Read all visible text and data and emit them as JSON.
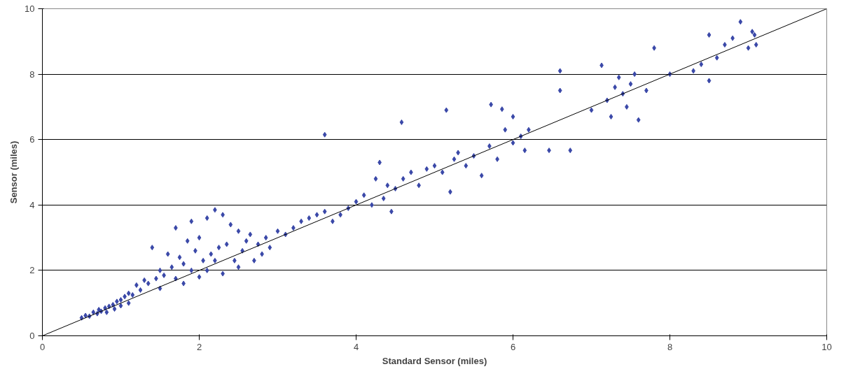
{
  "chart_data": {
    "type": "scatter",
    "xlabel": "Standard Sensor (miles)",
    "ylabel": "Sensor (miles)",
    "xlim": [
      0,
      10
    ],
    "ylim": [
      0,
      10
    ],
    "xticks": [
      0,
      2,
      4,
      6,
      8,
      10
    ],
    "yticks": [
      0,
      2,
      4,
      6,
      8,
      10
    ],
    "grid": "y",
    "series": [
      {
        "color": "#3a48a8",
        "marker": "diamond",
        "x": [
          0.5,
          0.55,
          0.6,
          0.65,
          0.7,
          0.72,
          0.75,
          0.8,
          0.82,
          0.85,
          0.9,
          0.92,
          0.95,
          1.0,
          1.0,
          1.05,
          1.1,
          1.1,
          1.15,
          1.2,
          1.25,
          1.3,
          1.35,
          1.4,
          1.45,
          1.5,
          1.5,
          1.55,
          1.6,
          1.65,
          1.7,
          1.7,
          1.75,
          1.8,
          1.8,
          1.85,
          1.9,
          1.9,
          1.95,
          2.0,
          2.0,
          2.05,
          2.1,
          2.1,
          2.15,
          2.2,
          2.2,
          2.25,
          2.3,
          2.3,
          2.35,
          2.4,
          2.45,
          2.5,
          2.5,
          2.55,
          2.6,
          2.65,
          2.7,
          2.75,
          2.8,
          2.85,
          2.9,
          3.0,
          3.1,
          3.2,
          3.3,
          3.4,
          3.5,
          3.6,
          3.6,
          3.7,
          3.8,
          3.9,
          4.0,
          4.1,
          4.2,
          4.25,
          4.3,
          4.35,
          4.4,
          4.45,
          4.5,
          4.58,
          4.6,
          4.7,
          4.8,
          4.9,
          5.0,
          5.1,
          5.15,
          5.2,
          5.25,
          5.3,
          5.4,
          5.5,
          5.6,
          5.7,
          5.72,
          5.8,
          5.86,
          5.9,
          6.0,
          6.0,
          6.1,
          6.15,
          6.2,
          6.46,
          6.6,
          6.6,
          6.73,
          7.0,
          7.13,
          7.2,
          7.25,
          7.3,
          7.35,
          7.4,
          7.45,
          7.5,
          7.55,
          7.6,
          7.7,
          7.8,
          8.0,
          8.3,
          8.4,
          8.5,
          8.5,
          8.6,
          8.7,
          8.8,
          8.9,
          9.0,
          9.05,
          9.1,
          9.08
        ],
        "values": [
          0.55,
          0.62,
          0.6,
          0.72,
          0.68,
          0.8,
          0.75,
          0.85,
          0.72,
          0.9,
          0.95,
          0.82,
          1.05,
          1.1,
          0.92,
          1.2,
          1.3,
          1.0,
          1.25,
          1.55,
          1.4,
          1.7,
          1.6,
          2.7,
          1.75,
          2.0,
          1.45,
          1.85,
          2.5,
          2.1,
          3.3,
          1.75,
          2.4,
          2.2,
          1.6,
          2.9,
          3.5,
          2.0,
          2.6,
          3.0,
          1.8,
          2.3,
          3.6,
          2.0,
          2.5,
          3.85,
          2.3,
          2.7,
          3.7,
          1.9,
          2.8,
          3.4,
          2.3,
          3.2,
          2.1,
          2.6,
          2.9,
          3.1,
          2.3,
          2.8,
          2.5,
          3.0,
          2.7,
          3.2,
          3.1,
          3.3,
          3.5,
          3.6,
          3.7,
          3.8,
          6.15,
          3.5,
          3.7,
          3.9,
          4.1,
          4.3,
          4.0,
          4.8,
          5.3,
          4.2,
          4.6,
          3.8,
          4.5,
          6.53,
          4.8,
          5.0,
          4.6,
          5.1,
          5.2,
          5.0,
          6.9,
          4.4,
          5.4,
          5.6,
          5.2,
          5.5,
          4.9,
          5.8,
          7.07,
          5.4,
          6.93,
          6.3,
          6.7,
          5.9,
          6.1,
          5.67,
          6.3,
          5.67,
          7.5,
          8.1,
          5.67,
          6.9,
          8.27,
          7.2,
          6.7,
          7.6,
          7.9,
          7.4,
          7.0,
          7.7,
          8.0,
          6.6,
          7.5,
          8.8,
          8.0,
          8.1,
          8.3,
          7.8,
          9.2,
          8.5,
          8.9,
          9.1,
          9.6,
          8.8,
          9.3,
          8.9,
          9.2
        ]
      },
      {
        "type": "line",
        "marker": "none",
        "color": "#000000",
        "x": [
          0,
          10
        ],
        "values": [
          0,
          10
        ]
      }
    ]
  }
}
